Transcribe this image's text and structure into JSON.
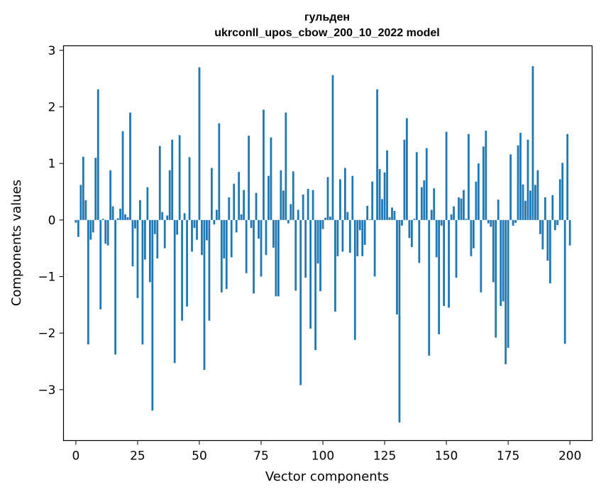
{
  "chart_data": {
    "type": "bar",
    "title_line1": "гульден",
    "title_line2": "ukrconll_upos_cbow_200_10_2022 model",
    "xlabel": "Vector components",
    "ylabel": "Components values",
    "xlim": [
      -5,
      209
    ],
    "ylim": [
      -3.9,
      3.08
    ],
    "x_ticks": [
      0,
      25,
      50,
      75,
      100,
      125,
      150,
      175,
      200
    ],
    "x_tick_labels": [
      "0",
      "25",
      "50",
      "75",
      "100",
      "125",
      "150",
      "175",
      "200"
    ],
    "y_ticks": [
      -3,
      -2,
      -1,
      0,
      1,
      2,
      3
    ],
    "y_tick_labels": [
      "−3",
      "−2",
      "−1",
      "0",
      "1",
      "2",
      "3"
    ],
    "grid": false,
    "bar_color": "#1f77b4",
    "values": [
      -0.05,
      -0.3,
      0.62,
      1.12,
      0.35,
      -2.2,
      -0.35,
      -0.22,
      1.1,
      2.31,
      -1.58,
      0.02,
      -0.42,
      -0.45,
      0.88,
      0.24,
      -2.38,
      0.03,
      0.2,
      1.57,
      0.1,
      0.05,
      1.9,
      -0.82,
      -0.15,
      -1.38,
      0.35,
      -2.2,
      -0.7,
      0.58,
      -1.1,
      -3.37,
      -0.25,
      -0.68,
      1.31,
      0.14,
      -0.5,
      0.08,
      0.88,
      1.42,
      -2.53,
      -0.26,
      1.5,
      -1.78,
      0.12,
      -1.53,
      1.11,
      -0.56,
      -0.14,
      -0.35,
      2.7,
      -0.62,
      -2.65,
      -0.36,
      -1.78,
      0.92,
      -0.08,
      0.18,
      1.71,
      -1.28,
      -0.68,
      -1.22,
      0.4,
      -0.66,
      0.64,
      -0.22,
      0.85,
      0.1,
      0.53,
      -0.94,
      1.49,
      -0.14,
      -1.3,
      0.48,
      -0.33,
      -1.0,
      1.95,
      -0.62,
      0.78,
      1.46,
      -0.49,
      -1.35,
      -1.35,
      0.88,
      0.52,
      1.9,
      -0.06,
      0.28,
      0.86,
      -1.25,
      0.18,
      -2.92,
      0.45,
      -1.02,
      0.55,
      -1.92,
      0.53,
      -2.3,
      -0.77,
      -1.26,
      -0.16,
      0.04,
      0.76,
      0.06,
      2.56,
      -1.62,
      -0.64,
      0.72,
      -0.56,
      0.92,
      0.14,
      -0.58,
      0.78,
      -2.12,
      -0.64,
      -0.18,
      -0.64,
      -0.44,
      0.25,
      0.01,
      0.68,
      -1.0,
      2.31,
      0.9,
      0.37,
      0.84,
      1.23,
      0.05,
      0.22,
      0.16,
      -1.67,
      -3.58,
      -0.1,
      1.42,
      1.8,
      -0.32,
      -0.48,
      0.02,
      1.2,
      -0.76,
      0.58,
      0.7,
      1.27,
      -2.4,
      0.18,
      0.56,
      -0.66,
      -2.02,
      -0.1,
      -1.52,
      1.56,
      -1.55,
      0.1,
      0.24,
      -1.02,
      0.4,
      0.38,
      0.53,
      0.02,
      1.52,
      -0.64,
      -0.5,
      0.68,
      1.0,
      -1.28,
      1.3,
      1.58,
      -0.06,
      -0.12,
      -1.1,
      -2.08,
      0.36,
      -1.52,
      -1.44,
      -2.55,
      -2.26,
      1.16,
      -0.1,
      -0.05,
      1.32,
      1.54,
      0.63,
      0.34,
      1.42,
      0.52,
      2.72,
      0.62,
      0.88,
      -0.25,
      -0.52,
      0.4,
      -0.72,
      -1.12,
      0.44,
      -0.18,
      -0.09,
      0.72,
      1.01,
      -2.19,
      1.52,
      -0.45
    ]
  }
}
